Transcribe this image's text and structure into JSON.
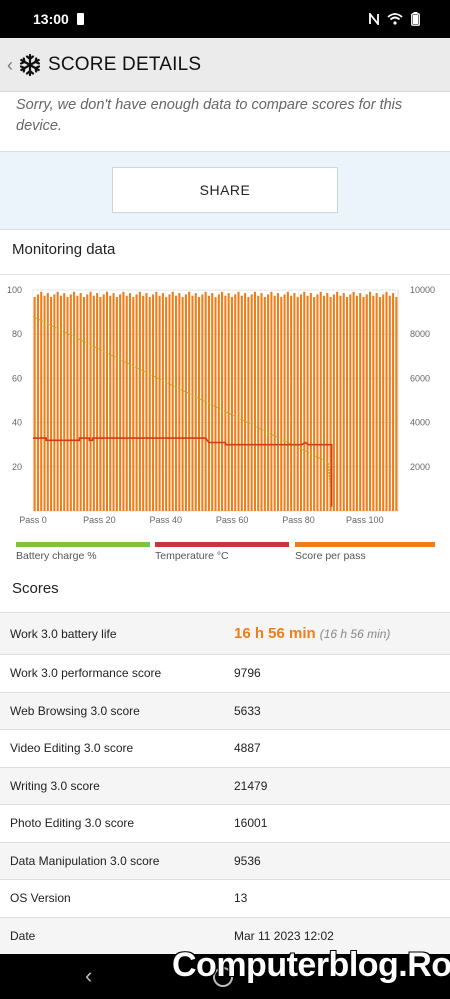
{
  "status_bar": {
    "time": "13:00"
  },
  "app_bar": {
    "title": "SCORE DETAILS"
  },
  "notice": {
    "text": "Sorry, we don't have enough data to compare scores for this device."
  },
  "share": {
    "label": "SHARE"
  },
  "monitoring": {
    "title": "Monitoring data",
    "legend": [
      {
        "label": "Battery charge %",
        "color": "#7cc243"
      },
      {
        "label": "Temperature °C",
        "color": "#c8353a"
      },
      {
        "label": "Score per pass",
        "color": "#ef7d1a"
      }
    ]
  },
  "chart_data": {
    "type": "bar",
    "x_tick_labels": [
      "Pass 0",
      "Pass 20",
      "Pass 40",
      "Pass 60",
      "Pass 80",
      "Pass 100"
    ],
    "left_axis_ticks": [
      "100",
      "80",
      "60",
      "40",
      "20"
    ],
    "right_axis_ticks": [
      "10000",
      "8000",
      "6000",
      "4000",
      "2000"
    ],
    "left_ylim": [
      0,
      100
    ],
    "right_ylim": [
      0,
      10000
    ],
    "xlim": [
      0,
      110
    ],
    "grid": true,
    "series": [
      {
        "name": "Score per pass",
        "axis": "right",
        "color": "#ef7d1a",
        "pass_count": 111,
        "typical_value": 9800
      },
      {
        "name": "Battery charge %",
        "axis": "left",
        "color": "#a3b818",
        "points": [
          [
            0,
            88
          ],
          [
            89,
            22
          ],
          [
            90,
            1
          ]
        ]
      },
      {
        "name": "Temperature °C",
        "axis": "left",
        "color": "#d23a1a",
        "points": [
          [
            0,
            33
          ],
          [
            4,
            33
          ],
          [
            4,
            32
          ],
          [
            14,
            32
          ],
          [
            14,
            33
          ],
          [
            17,
            33
          ],
          [
            17,
            32
          ],
          [
            18,
            32
          ],
          [
            18,
            33
          ],
          [
            52,
            33
          ],
          [
            53,
            31
          ],
          [
            58,
            31
          ],
          [
            58,
            30
          ],
          [
            81,
            30
          ],
          [
            82,
            31
          ],
          [
            83,
            30
          ],
          [
            90,
            30
          ],
          [
            90,
            2
          ]
        ]
      }
    ]
  },
  "scores": {
    "title": "Scores",
    "rows": [
      {
        "label": "Work 3.0 battery life",
        "value": "16 h 56 min",
        "sub": "(16 h 56 min)"
      },
      {
        "label": "Work 3.0 performance score",
        "value": "9796"
      },
      {
        "label": "Web Browsing 3.0 score",
        "value": "5633"
      },
      {
        "label": "Video Editing 3.0 score",
        "value": "4887"
      },
      {
        "label": "Writing 3.0 score",
        "value": "21479"
      },
      {
        "label": "Photo Editing 3.0 score",
        "value": "16001"
      },
      {
        "label": "Data Manipulation 3.0 score",
        "value": "9536"
      },
      {
        "label": "OS Version",
        "value": "13"
      },
      {
        "label": "Date",
        "value": "Mar 11 2023 12:02"
      }
    ]
  },
  "watermark": {
    "text": "Computerblog.Ro"
  }
}
